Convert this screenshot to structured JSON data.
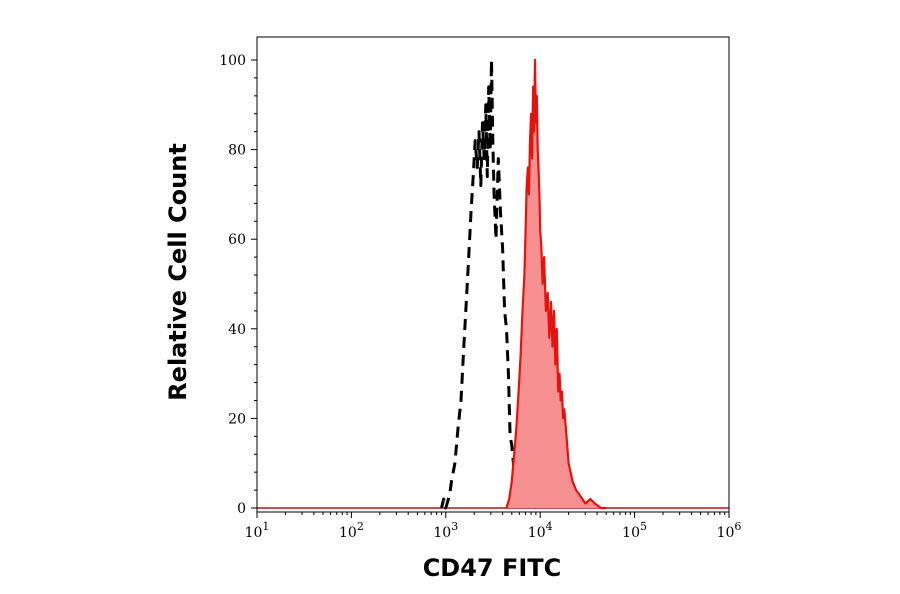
{
  "chart_data": {
    "type": "area",
    "xlabel": "CD47 FITC",
    "ylabel": "Relative Cell Count",
    "x_scale": "log",
    "xlim": [
      10,
      1000000
    ],
    "ylim": [
      0,
      100
    ],
    "x_ticks": [
      {
        "value": 10,
        "base": "10",
        "exp": "1"
      },
      {
        "value": 100,
        "base": "10",
        "exp": "2"
      },
      {
        "value": 1000,
        "base": "10",
        "exp": "3"
      },
      {
        "value": 10000,
        "base": "10",
        "exp": "4"
      },
      {
        "value": 100000,
        "base": "10",
        "exp": "5"
      },
      {
        "value": 1000000,
        "base": "10",
        "exp": "6"
      }
    ],
    "y_ticks": [
      "0",
      "20",
      "40",
      "60",
      "80",
      "100"
    ],
    "grid": false,
    "legend": "none",
    "series": [
      {
        "style": "dashed",
        "color": "#000000",
        "fill": "none",
        "x": [
          900,
          950,
          1000,
          1100,
          1150,
          1250,
          1350,
          1450,
          1550,
          1650,
          1750,
          1850,
          1950,
          2050,
          2150,
          2250,
          2350,
          2450,
          2550,
          2650,
          2750,
          2850,
          2950,
          3050,
          3150,
          3250,
          3400,
          3600,
          3800,
          4000,
          4200,
          4400,
          4600,
          4800,
          5000,
          5300,
          5600,
          6000,
          6500,
          7000,
          7500,
          8000,
          8500,
          9000
        ],
        "y": [
          0,
          2,
          0,
          3,
          6,
          10,
          18,
          24,
          36,
          46,
          56,
          66,
          74,
          82,
          76,
          84,
          72,
          86,
          78,
          90,
          74,
          94,
          80,
          100,
          82,
          70,
          60,
          78,
          66,
          58,
          44,
          40,
          30,
          16,
          14,
          8,
          6,
          4,
          2,
          3,
          1,
          2,
          1,
          0
        ]
      },
      {
        "style": "solid",
        "color": "#e8120c",
        "fill": "#f79090",
        "x": [
          4400,
          4700,
          5000,
          5300,
          5600,
          5900,
          6200,
          6500,
          6800,
          7000,
          7200,
          7400,
          7600,
          7800,
          8000,
          8200,
          8400,
          8600,
          8800,
          9000,
          9200,
          9400,
          9600,
          9800,
          10000,
          10300,
          10600,
          11000,
          11500,
          12000,
          12500,
          13000,
          13500,
          14000,
          14500,
          15000,
          15500,
          16000,
          16500,
          17000,
          17500,
          18000,
          19000,
          20000,
          21000,
          22000,
          24000,
          26000,
          28000,
          30000,
          34000,
          38000,
          44000,
          50000
        ],
        "y": [
          0,
          2,
          6,
          12,
          18,
          26,
          34,
          44,
          52,
          62,
          72,
          76,
          70,
          82,
          88,
          78,
          94,
          84,
          100,
          86,
          92,
          80,
          76,
          70,
          62,
          58,
          50,
          56,
          44,
          48,
          38,
          46,
          36,
          44,
          32,
          40,
          26,
          30,
          24,
          26,
          20,
          22,
          16,
          10,
          8,
          6,
          4,
          3,
          2,
          1,
          2,
          1,
          0,
          0
        ]
      }
    ]
  }
}
